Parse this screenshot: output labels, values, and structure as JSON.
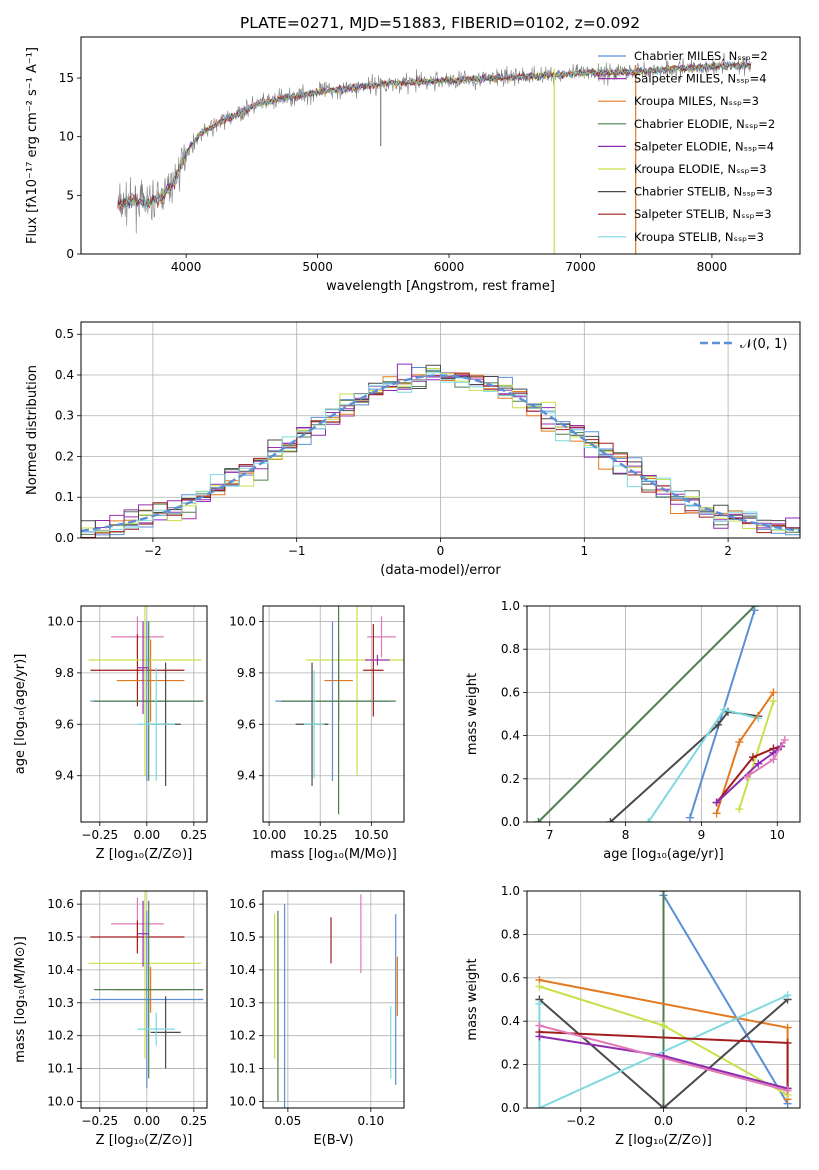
{
  "figure": {
    "title": "PLATE=0271, MJD=51883, FIBERID=0102, z=0.092"
  },
  "colors": {
    "chabrier_miles": "#5b8fd6",
    "salpeter_miles": "#9b30b0",
    "kroupa_miles": "#e37a1f",
    "chabrier_elodie": "#4e7d4e",
    "salpeter_elodie": "#8e2bb0",
    "kroupa_elodie": "#c7e14a",
    "chabrier_stelib": "#4a4a4a",
    "salpeter_stelib": "#a31d1d",
    "kroupa_stelib": "#7fd9df",
    "pink": "#e27ab8",
    "data": "#7f7f7f",
    "normal": "#5b8fd6"
  },
  "chart_data": [
    {
      "id": "spectrum",
      "type": "line",
      "xlabel": "wavelength [Angstrom, rest frame]",
      "ylabel": "Flux [fλ10⁻¹⁷ erg cm⁻² s⁻¹ A⁻¹]",
      "xlim": [
        3200,
        8670
      ],
      "ylim": [
        0,
        18.5
      ],
      "xticks": [
        "4000",
        "5000",
        "6000",
        "7000",
        "8000"
      ],
      "yticks": [
        "0",
        "5",
        "10",
        "15"
      ],
      "legend_position": "upper-right",
      "legend": [
        "Chabrier MILES, Nₛₛₚ=2",
        "Salpeter MILES, Nₛₛₚ=4",
        "Kroupa MILES, Nₛₛₚ=3",
        "Chabrier ELODIE, Nₛₛₚ=2",
        "Salpeter ELODIE, Nₛₛₚ=4",
        "Kroupa ELODIE, Nₛₛₚ=3",
        "Chabrier STELIB, Nₛₛₚ=3",
        "Salpeter STELIB, Nₛₛₚ=3",
        "Kroupa STELIB, Nₛₛₚ=3"
      ],
      "continuum": {
        "x": [
          3500,
          3600,
          3700,
          3800,
          3900,
          4000,
          4100,
          4200,
          4300,
          4400,
          4500,
          4700,
          5000,
          5500,
          6000,
          6500,
          7000,
          7500,
          8000,
          8300
        ],
        "y": [
          4.2,
          4.6,
          4.3,
          4.8,
          6.0,
          8.6,
          10.2,
          10.8,
          11.5,
          11.9,
          12.6,
          13.2,
          13.8,
          14.5,
          14.8,
          15.1,
          15.4,
          15.6,
          16.0,
          16.1
        ]
      },
      "x_start": 3480,
      "x_end": 8300,
      "dropouts": [
        {
          "x": 6800,
          "y": 0
        },
        {
          "x": 7420,
          "y": 0
        },
        {
          "x": 5480,
          "y": 9.2
        }
      ]
    },
    {
      "id": "residuals",
      "type": "area",
      "xlabel": "(data-model)/error",
      "ylabel": "Normed distribution",
      "xlim": [
        -2.5,
        2.5
      ],
      "ylim": [
        0,
        0.53
      ],
      "xticks": [
        "−2",
        "−1",
        "0",
        "1",
        "2"
      ],
      "yticks": [
        "0.0",
        "0.1",
        "0.2",
        "0.3",
        "0.4",
        "0.5"
      ],
      "legend": [
        "𝒩(0, 1)"
      ],
      "legend_position": "upper-right",
      "bin_width": 0.1,
      "bin_start": -2.5,
      "series_count": 9
    },
    {
      "id": "z-age",
      "type": "scatter",
      "xlabel": "Z [log₁₀(Z/Z⊙)]",
      "ylabel": "age  [log₁₀(age/yr)]",
      "xlim": [
        -0.35,
        0.32
      ],
      "ylim": [
        9.22,
        10.06
      ],
      "xticks": [
        "−0.25",
        "0.00",
        "0.25"
      ],
      "yticks": [
        "9.4",
        "9.6",
        "9.8",
        "10.0"
      ],
      "points": [
        {
          "x": -0.05,
          "y": 9.94,
          "ex": 0.14,
          "ey": 0.08,
          "c": "pink"
        },
        {
          "x": -0.05,
          "y": 9.81,
          "ex": 0.25,
          "ey": 0.14,
          "c": "salpeter_stelib"
        },
        {
          "x": 0.02,
          "y": 9.77,
          "ex": 0.18,
          "ey": 0.16,
          "c": "kroupa_miles"
        },
        {
          "x": -0.01,
          "y": 9.85,
          "ex": 0.3,
          "ey": 0.45,
          "c": "kroupa_elodie"
        },
        {
          "x": 0.0,
          "y": 9.69,
          "ex": 0.3,
          "ey": 0.31,
          "c": "chabrier_miles"
        },
        {
          "x": 0.01,
          "y": 9.69,
          "ex": 0.29,
          "ey": 0.31,
          "c": "chabrier_elodie"
        },
        {
          "x": 0.1,
          "y": 9.6,
          "ex": 0.08,
          "ey": 0.24,
          "c": "chabrier_stelib"
        },
        {
          "x": 0.05,
          "y": 9.6,
          "ex": 0.1,
          "ey": 0.22,
          "c": "kroupa_stelib"
        },
        {
          "x": -0.02,
          "y": 9.82,
          "ex": 0.03,
          "ey": 0.18,
          "c": "salpeter_miles"
        }
      ]
    },
    {
      "id": "mass-age",
      "type": "scatter",
      "xlabel": "mass [log₁₀(M/M⊙)]",
      "ylabel": "",
      "xlim": [
        9.97,
        10.66
      ],
      "ylim": [
        9.22,
        10.06
      ],
      "xticks": [
        "10.00",
        "10.25",
        "10.50"
      ],
      "yticks": [
        "9.4",
        "9.6",
        "9.8",
        "10.0"
      ],
      "points": [
        {
          "x": 10.55,
          "y": 9.94,
          "ex": 0.07,
          "ey": 0.08,
          "c": "pink"
        },
        {
          "x": 10.51,
          "y": 9.81,
          "ex": 0.05,
          "ey": 0.18,
          "c": "salpeter_stelib"
        },
        {
          "x": 10.34,
          "y": 9.77,
          "ex": 0.07,
          "ey": 0.15,
          "c": "kroupa_miles"
        },
        {
          "x": 10.43,
          "y": 9.85,
          "ex": 0.25,
          "ey": 0.45,
          "c": "kroupa_elodie"
        },
        {
          "x": 10.31,
          "y": 9.69,
          "ex": 0.28,
          "ey": 0.31,
          "c": "chabrier_miles"
        },
        {
          "x": 10.34,
          "y": 9.69,
          "ex": 0.28,
          "ey": 0.44,
          "c": "chabrier_elodie"
        },
        {
          "x": 10.21,
          "y": 9.6,
          "ex": 0.08,
          "ey": 0.24,
          "c": "chabrier_stelib"
        },
        {
          "x": 10.22,
          "y": 9.6,
          "ex": 0.05,
          "ey": 0.21,
          "c": "kroupa_stelib"
        },
        {
          "x": 10.53,
          "y": 9.85,
          "ex": 0.06,
          "ey": 0.02,
          "c": "salpeter_miles"
        }
      ]
    },
    {
      "id": "age-weight",
      "type": "line",
      "xlabel": "age  [log₁₀(age/yr)]",
      "ylabel": "mass weight",
      "xlim": [
        6.7,
        10.3
      ],
      "ylim": [
        0,
        1.0
      ],
      "xticks": [
        "7",
        "8",
        "9",
        "10"
      ],
      "yticks": [
        "0.0",
        "0.2",
        "0.4",
        "0.6",
        "0.8",
        "1.0"
      ],
      "series": [
        {
          "c": "chabrier_elodie",
          "x": [
            6.85,
            9.7
          ],
          "y": [
            0.0,
            1.0
          ]
        },
        {
          "c": "chabrier_miles",
          "x": [
            8.85,
            9.7
          ],
          "y": [
            0.02,
            0.98
          ]
        },
        {
          "c": "chabrier_stelib",
          "x": [
            7.8,
            9.22,
            9.35,
            9.75
          ],
          "y": [
            0.0,
            0.45,
            0.51,
            0.49
          ]
        },
        {
          "c": "kroupa_stelib",
          "x": [
            8.3,
            9.3,
            9.75
          ],
          "y": [
            0.0,
            0.52,
            0.48
          ]
        },
        {
          "c": "kroupa_miles",
          "x": [
            9.2,
            9.5,
            9.95
          ],
          "y": [
            0.04,
            0.37,
            0.6
          ]
        },
        {
          "c": "kroupa_elodie",
          "x": [
            9.5,
            9.95
          ],
          "y": [
            0.06,
            0.56
          ]
        },
        {
          "c": "salpeter_stelib",
          "x": [
            9.2,
            9.68,
            9.95,
            10.05
          ],
          "y": [
            0.09,
            0.3,
            0.34,
            0.35
          ]
        },
        {
          "c": "salpeter_elodie",
          "x": [
            9.2,
            9.75,
            9.95,
            10.05
          ],
          "y": [
            0.09,
            0.27,
            0.32,
            0.35
          ]
        },
        {
          "c": "pink",
          "x": [
            9.6,
            9.95,
            10.1
          ],
          "y": [
            0.21,
            0.29,
            0.38
          ]
        }
      ]
    },
    {
      "id": "z-mass",
      "type": "scatter",
      "xlabel": "Z [log₁₀(Z/Z⊙)]",
      "ylabel": "mass [log₁₀(M/M⊙)]",
      "xlim": [
        -0.35,
        0.32
      ],
      "ylim": [
        9.98,
        10.64
      ],
      "xticks": [
        "−0.25",
        "0.00",
        "0.25"
      ],
      "yticks": [
        "10.0",
        "10.1",
        "10.2",
        "10.3",
        "10.4",
        "10.5",
        "10.6"
      ],
      "points": [
        {
          "x": -0.05,
          "y": 10.54,
          "ex": 0.14,
          "ey": 0.08,
          "c": "pink"
        },
        {
          "x": -0.05,
          "y": 10.5,
          "ex": 0.25,
          "ey": 0.05,
          "c": "salpeter_stelib"
        },
        {
          "x": 0.02,
          "y": 10.34,
          "ex": 0.18,
          "ey": 0.07,
          "c": "kroupa_miles"
        },
        {
          "x": -0.01,
          "y": 10.42,
          "ex": 0.3,
          "ey": 0.29,
          "c": "kroupa_elodie"
        },
        {
          "x": 0.0,
          "y": 10.31,
          "ex": 0.3,
          "ey": 0.27,
          "c": "chabrier_miles"
        },
        {
          "x": 0.01,
          "y": 10.34,
          "ex": 0.29,
          "ey": 0.27,
          "c": "chabrier_elodie"
        },
        {
          "x": 0.1,
          "y": 10.21,
          "ex": 0.08,
          "ey": 0.11,
          "c": "chabrier_stelib"
        },
        {
          "x": 0.05,
          "y": 10.22,
          "ex": 0.1,
          "ey": 0.05,
          "c": "kroupa_stelib"
        },
        {
          "x": -0.02,
          "y": 10.51,
          "ex": 0.03,
          "ey": 0.1,
          "c": "salpeter_miles"
        }
      ]
    },
    {
      "id": "ebv-mass",
      "type": "scatter",
      "xlabel": "E(B-V)",
      "ylabel": "",
      "xlim": [
        0.035,
        0.12
      ],
      "ylim": [
        9.98,
        10.64
      ],
      "xticks": [
        "0.05",
        "0.10"
      ],
      "yticks": [
        "10.0",
        "10.1",
        "10.2",
        "10.3",
        "10.4",
        "10.5",
        "10.6"
      ],
      "points": [
        {
          "x": 0.042,
          "y": 10.35,
          "ex": 0,
          "ey": 0.22,
          "c": "kroupa_elodie"
        },
        {
          "x": 0.044,
          "y": 10.29,
          "ex": 0,
          "ey": 0.29,
          "c": "chabrier_elodie"
        },
        {
          "x": 0.048,
          "y": 10.27,
          "ex": 0,
          "ey": 0.33,
          "c": "chabrier_miles"
        },
        {
          "x": 0.076,
          "y": 10.49,
          "ex": 0,
          "ey": 0.07,
          "c": "salpeter_stelib"
        },
        {
          "x": 0.094,
          "y": 10.51,
          "ex": 0,
          "ey": 0.12,
          "c": "pink"
        },
        {
          "x": 0.112,
          "y": 10.18,
          "ex": 0,
          "ey": 0.11,
          "c": "kroupa_stelib"
        },
        {
          "x": 0.115,
          "y": 10.31,
          "ex": 0,
          "ey": 0.26,
          "c": "chabrier_miles"
        },
        {
          "x": 0.116,
          "y": 10.35,
          "ex": 0,
          "ey": 0.09,
          "c": "kroupa_miles"
        }
      ]
    },
    {
      "id": "z-weight",
      "type": "line",
      "xlabel": "Z [log₁₀(Z/Z⊙)]",
      "ylabel": "mass weight",
      "xlim": [
        -0.33,
        0.33
      ],
      "ylim": [
        0,
        1.0
      ],
      "xticks": [
        "−0.2",
        "0.0",
        "0.2"
      ],
      "yticks": [
        "0.0",
        "0.2",
        "0.4",
        "0.6",
        "0.8",
        "1.0"
      ],
      "series": [
        {
          "c": "chabrier_miles",
          "x": [
            0.0,
            0.3
          ],
          "y": [
            0.98,
            0.02
          ]
        },
        {
          "c": "chabrier_elodie",
          "x": [
            0.0,
            0.0
          ],
          "y": [
            0.0,
            1.0
          ]
        },
        {
          "c": "kroupa_miles",
          "x": [
            -0.3,
            0.3,
            0.3
          ],
          "y": [
            0.59,
            0.37,
            0.04
          ]
        },
        {
          "c": "kroupa_elodie",
          "x": [
            -0.3,
            0.0,
            0.3
          ],
          "y": [
            0.56,
            0.38,
            0.06
          ]
        },
        {
          "c": "chabrier_stelib",
          "x": [
            -0.3,
            0.0,
            0.3
          ],
          "y": [
            0.5,
            0.0,
            0.5
          ]
        },
        {
          "c": "kroupa_stelib",
          "x": [
            -0.3,
            -0.3,
            0.3
          ],
          "y": [
            0.48,
            0.0,
            0.52
          ]
        },
        {
          "c": "salpeter_stelib",
          "x": [
            -0.3,
            0.3,
            0.3
          ],
          "y": [
            0.35,
            0.3,
            0.09
          ]
        },
        {
          "c": "salpeter_elodie",
          "x": [
            -0.3,
            0.0,
            0.3
          ],
          "y": [
            0.33,
            0.24,
            0.09
          ]
        },
        {
          "c": "pink",
          "x": [
            -0.3,
            0.3
          ],
          "y": [
            0.38,
            0.08
          ]
        }
      ]
    }
  ]
}
